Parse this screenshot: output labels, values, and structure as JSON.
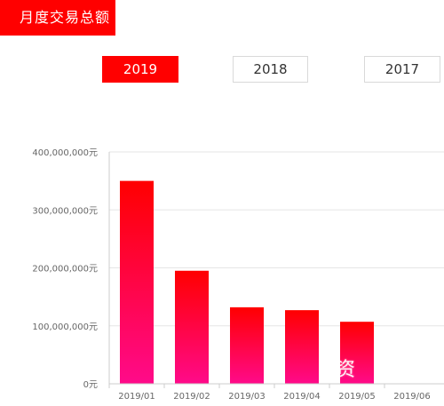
{
  "header": {
    "title": "月度交易总额"
  },
  "year_tabs": [
    {
      "label": "2019",
      "active": true
    },
    {
      "label": "2018",
      "active": false
    },
    {
      "label": "2017",
      "active": false
    }
  ],
  "watermark": "资",
  "colors": {
    "accent": "#ff0000",
    "bar_top": "#ff0000",
    "bar_bottom": "#ff0a8a",
    "grid": "#e6e6e6"
  },
  "chart_data": {
    "type": "bar",
    "categories": [
      "2019/01",
      "2019/02",
      "2019/03",
      "2019/04",
      "2019/05",
      "2019/06"
    ],
    "values": [
      350000000,
      195000000,
      132000000,
      127000000,
      107000000,
      0
    ],
    "y_ticks": [
      "0元",
      "100,000,000元",
      "200,000,000元",
      "300,000,000元",
      "400,000,000元"
    ],
    "ylim": [
      0,
      400000000
    ],
    "grid": true,
    "title": "",
    "xlabel": "",
    "ylabel": ""
  }
}
